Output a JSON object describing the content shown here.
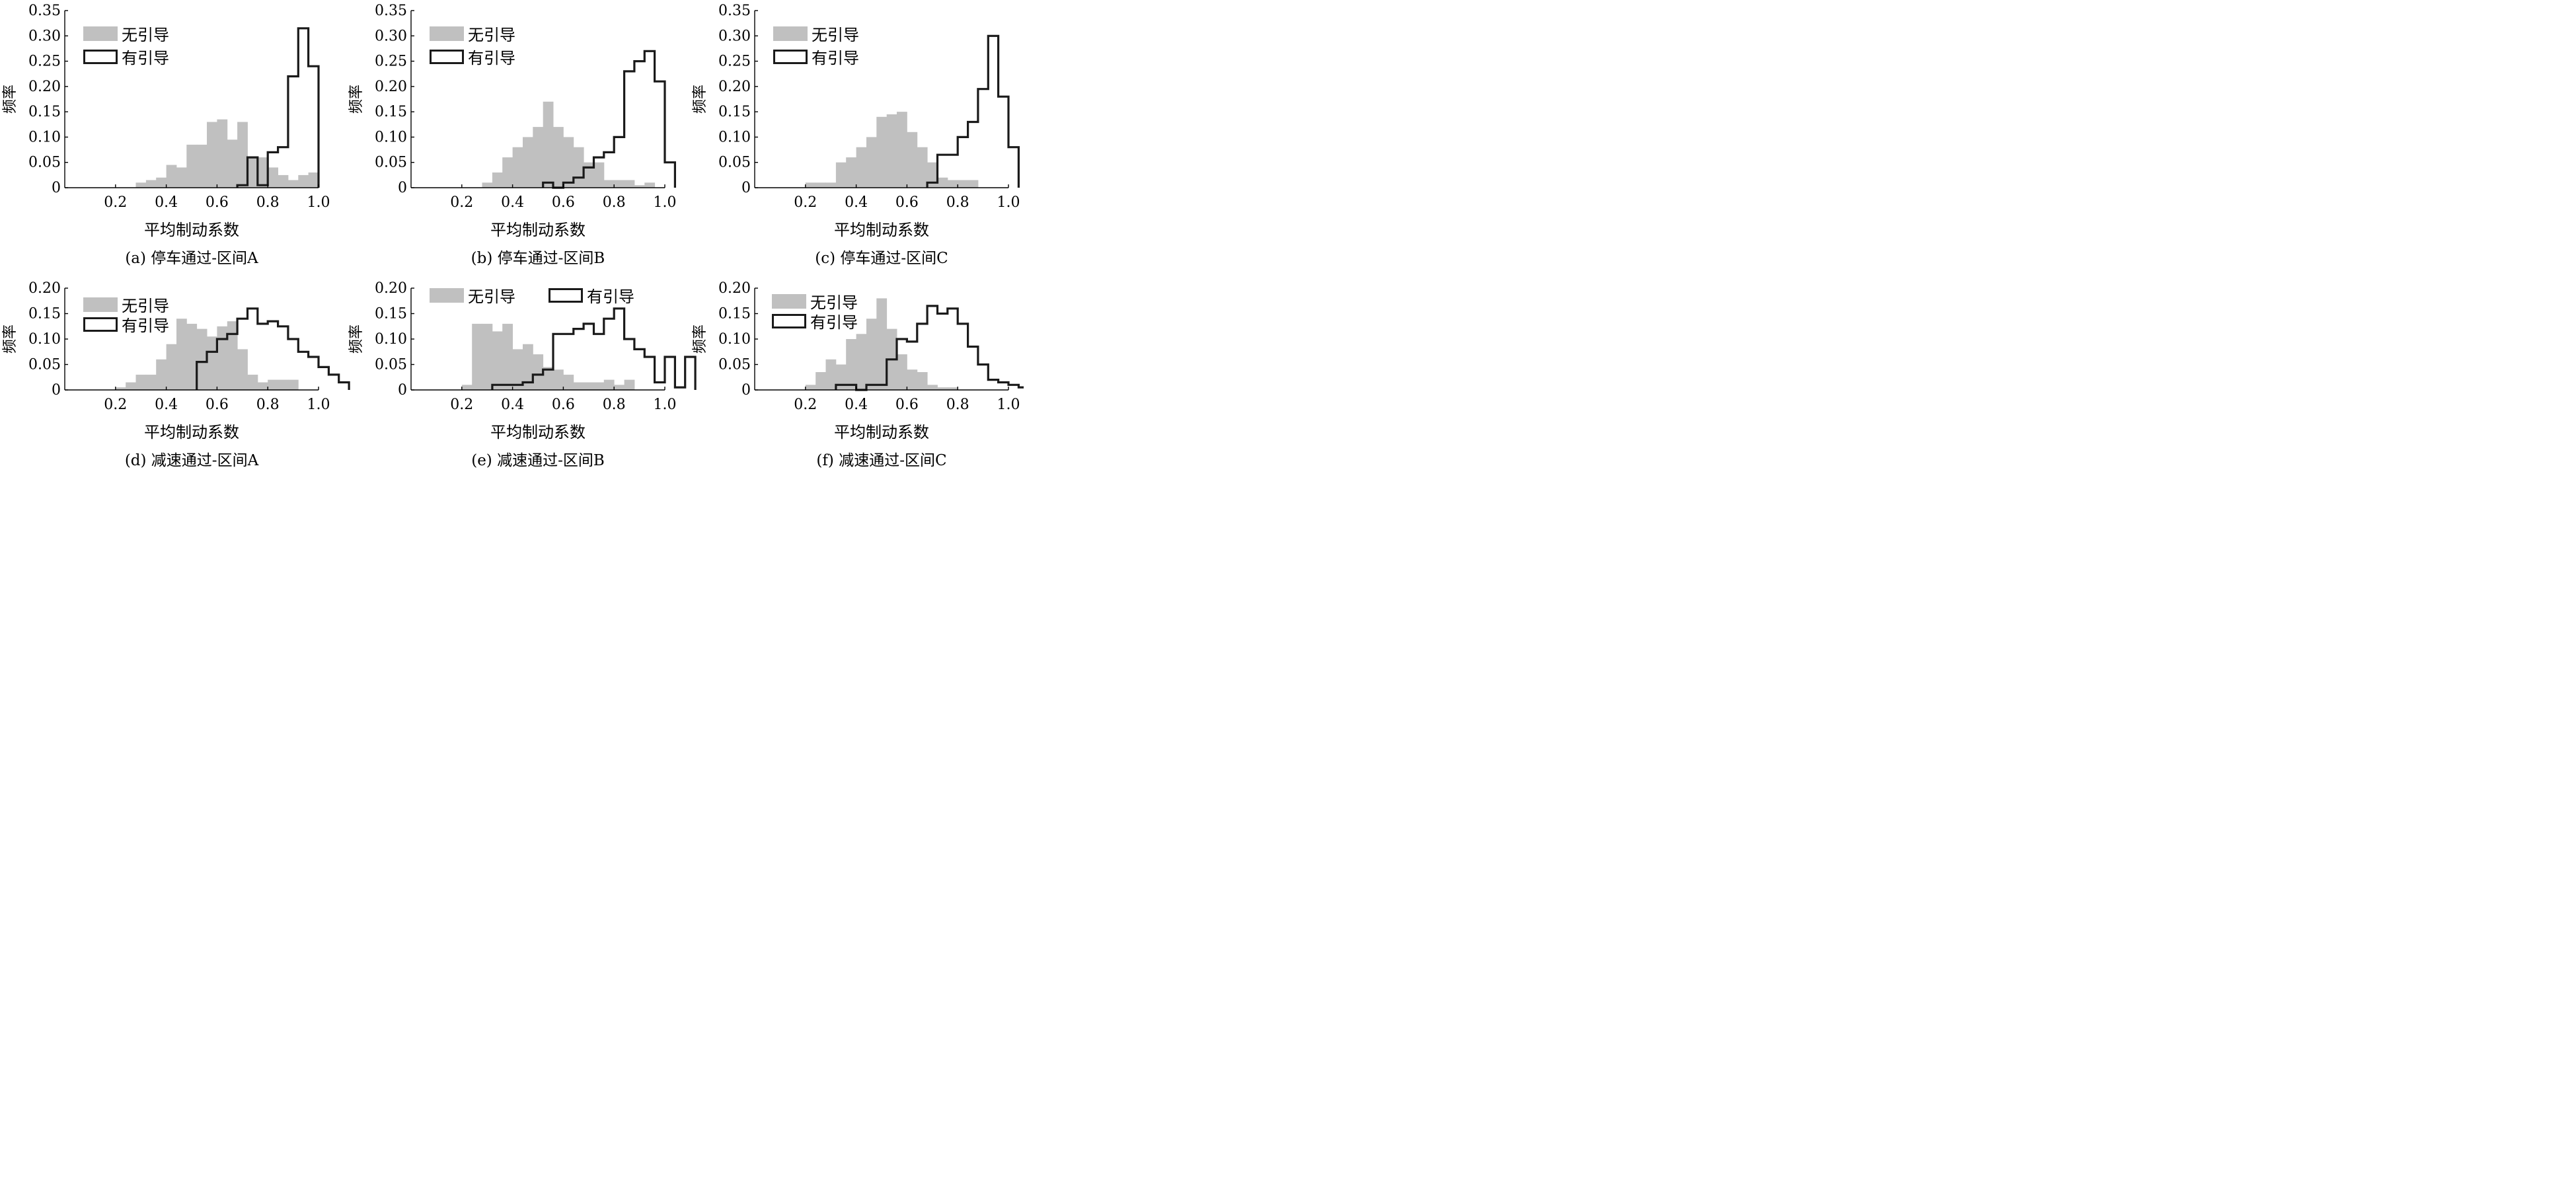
{
  "legend": {
    "no_guidance": "无引导",
    "with_guidance": "有引导"
  },
  "colors": {
    "no_guidance_fill": "#c0c0c0",
    "with_guidance_line": "#1a1a1a"
  },
  "chart_data": [
    {
      "id": "a",
      "type": "bar",
      "caption": "(a) 停车通过-区间A",
      "xlabel": "平均制动系数",
      "ylabel": "频率",
      "xlim": [
        0,
        1.0
      ],
      "ylim": [
        0,
        0.35
      ],
      "xticks": [
        "0.2",
        "0.4",
        "0.6",
        "0.8",
        "1.0"
      ],
      "yticks": [
        "0",
        "0.05",
        "0.10",
        "0.15",
        "0.20",
        "0.25",
        "0.30",
        "0.35"
      ],
      "legend_position": "top-left",
      "bin_start": 0.2,
      "bin_width": 0.04,
      "series": [
        {
          "name": "无引导",
          "style": "filled",
          "values": [
            0,
            0,
            0.01,
            0.015,
            0.02,
            0.045,
            0.04,
            0.085,
            0.085,
            0.13,
            0.135,
            0.095,
            0.13,
            0.06,
            0.06,
            0.04,
            0.025,
            0.015,
            0.025,
            0.03
          ]
        },
        {
          "name": "有引导",
          "style": "outline",
          "values": [
            0,
            0,
            0,
            0,
            0,
            0,
            0,
            0,
            0,
            0,
            0,
            0,
            0.005,
            0.06,
            0.005,
            0.07,
            0.08,
            0.22,
            0.315,
            0.24
          ]
        }
      ]
    },
    {
      "id": "b",
      "type": "bar",
      "caption": "(b) 停车通过-区间B",
      "xlabel": "平均制动系数",
      "ylabel": "频率",
      "xlim": [
        0,
        1.0
      ],
      "ylim": [
        0,
        0.35
      ],
      "xticks": [
        "0.2",
        "0.4",
        "0.6",
        "0.8",
        "1.0"
      ],
      "yticks": [
        "0",
        "0.05",
        "0.10",
        "0.15",
        "0.20",
        "0.25",
        "0.30",
        "0.35"
      ],
      "legend_position": "top-left",
      "bin_start": 0.2,
      "bin_width": 0.04,
      "series": [
        {
          "name": "无引导",
          "style": "filled",
          "values": [
            0,
            0,
            0.01,
            0.03,
            0.06,
            0.08,
            0.1,
            0.12,
            0.17,
            0.12,
            0.1,
            0.08,
            0.05,
            0.05,
            0.015,
            0.015,
            0.015,
            0.005,
            0.01,
            0
          ]
        },
        {
          "name": "有引导",
          "style": "outline",
          "values": [
            0,
            0,
            0,
            0,
            0,
            0,
            0,
            0,
            0.01,
            0,
            0.01,
            0.02,
            0.04,
            0.06,
            0.07,
            0.1,
            0.23,
            0.25,
            0.27,
            0.21,
            0.05
          ]
        }
      ]
    },
    {
      "id": "c",
      "type": "bar",
      "caption": "(c) 停车通过-区间C",
      "xlabel": "平均制动系数",
      "ylabel": "频率",
      "xlim": [
        0,
        1.0
      ],
      "ylim": [
        0,
        0.35
      ],
      "xticks": [
        "0.2",
        "0.4",
        "0.6",
        "0.8",
        "1.0"
      ],
      "yticks": [
        "0",
        "0.05",
        "0.10",
        "0.15",
        "0.20",
        "0.25",
        "0.30",
        "0.35"
      ],
      "legend_position": "top-left",
      "bin_start": 0.2,
      "bin_width": 0.04,
      "series": [
        {
          "name": "无引导",
          "style": "filled",
          "values": [
            0.01,
            0.01,
            0.01,
            0.05,
            0.06,
            0.08,
            0.1,
            0.14,
            0.145,
            0.15,
            0.11,
            0.08,
            0.05,
            0.02,
            0.015,
            0.015,
            0.015,
            0,
            0,
            0
          ]
        },
        {
          "name": "有引导",
          "style": "outline",
          "values": [
            0,
            0,
            0,
            0,
            0,
            0,
            0,
            0,
            0,
            0,
            0,
            0,
            0.01,
            0.065,
            0.065,
            0.1,
            0.13,
            0.195,
            0.3,
            0.18,
            0.08
          ]
        }
      ]
    },
    {
      "id": "d",
      "type": "bar",
      "caption": "(d) 减速通过-区间A",
      "xlabel": "平均制动系数",
      "ylabel": "频率",
      "xlim": [
        0,
        1.0
      ],
      "ylim": [
        0,
        0.2
      ],
      "xticks": [
        "0.2",
        "0.4",
        "0.6",
        "0.8",
        "1.0"
      ],
      "yticks": [
        "0",
        "0.05",
        "0.10",
        "0.15",
        "0.20"
      ],
      "legend_position": "top-left",
      "bin_start": 0.2,
      "bin_width": 0.04,
      "series": [
        {
          "name": "无引导",
          "style": "filled",
          "values": [
            0.005,
            0.015,
            0.03,
            0.03,
            0.06,
            0.09,
            0.14,
            0.13,
            0.12,
            0.105,
            0.125,
            0.135,
            0.08,
            0.03,
            0.015,
            0.02,
            0.02,
            0.02
          ]
        },
        {
          "name": "有引导",
          "style": "outline",
          "values": [
            0,
            0,
            0,
            0,
            0,
            0,
            0,
            0,
            0.055,
            0.075,
            0.1,
            0.11,
            0.14,
            0.16,
            0.13,
            0.135,
            0.125,
            0.1,
            0.075,
            0.065,
            0.045,
            0.03,
            0.015
          ]
        }
      ]
    },
    {
      "id": "e",
      "type": "bar",
      "caption": "(e) 减速通过-区间B",
      "xlabel": "平均制动系数",
      "ylabel": "频率",
      "xlim": [
        0,
        1.0
      ],
      "ylim": [
        0,
        0.2
      ],
      "xticks": [
        "0.2",
        "0.4",
        "0.6",
        "0.8",
        "1.0"
      ],
      "yticks": [
        "0",
        "0.05",
        "0.10",
        "0.15",
        "0.20"
      ],
      "legend_position": "top",
      "bin_start": 0.2,
      "bin_width": 0.04,
      "series": [
        {
          "name": "无引导",
          "style": "filled",
          "values": [
            0.01,
            0.13,
            0.13,
            0.115,
            0.13,
            0.08,
            0.09,
            0.07,
            0.045,
            0.04,
            0.03,
            0.015,
            0.015,
            0.015,
            0.02,
            0.01,
            0.02,
            0
          ]
        },
        {
          "name": "有引导",
          "style": "outline",
          "values": [
            0,
            0,
            0,
            0.01,
            0.01,
            0.01,
            0.015,
            0.03,
            0.04,
            0.11,
            0.11,
            0.12,
            0.13,
            0.11,
            0.14,
            0.16,
            0.1,
            0.08,
            0.065,
            0.015,
            0.065,
            0.005,
            0.065
          ]
        }
      ]
    },
    {
      "id": "f",
      "type": "bar",
      "caption": "(f) 减速通过-区间C",
      "xlabel": "平均制动系数",
      "ylabel": "频率",
      "xlim": [
        0,
        1.0
      ],
      "ylim": [
        0,
        0.2
      ],
      "xticks": [
        "0.2",
        "0.4",
        "0.6",
        "0.8",
        "1.0"
      ],
      "yticks": [
        "0",
        "0.05",
        "0.10",
        "0.15",
        "0.20"
      ],
      "legend_position": "top-left",
      "bin_start": 0.2,
      "bin_width": 0.04,
      "series": [
        {
          "name": "无引导",
          "style": "filled",
          "values": [
            0.01,
            0.035,
            0.06,
            0.05,
            0.1,
            0.11,
            0.14,
            0.18,
            0.12,
            0.07,
            0.04,
            0.035,
            0.01,
            0.005,
            0.005,
            0,
            0,
            0,
            0,
            0
          ]
        },
        {
          "name": "有引导",
          "style": "outline",
          "values": [
            0,
            0,
            0,
            0.01,
            0.01,
            0,
            0.01,
            0.01,
            0.06,
            0.1,
            0.095,
            0.13,
            0.165,
            0.15,
            0.16,
            0.13,
            0.085,
            0.05,
            0.02,
            0.015,
            0.01,
            0.005
          ]
        }
      ]
    }
  ]
}
